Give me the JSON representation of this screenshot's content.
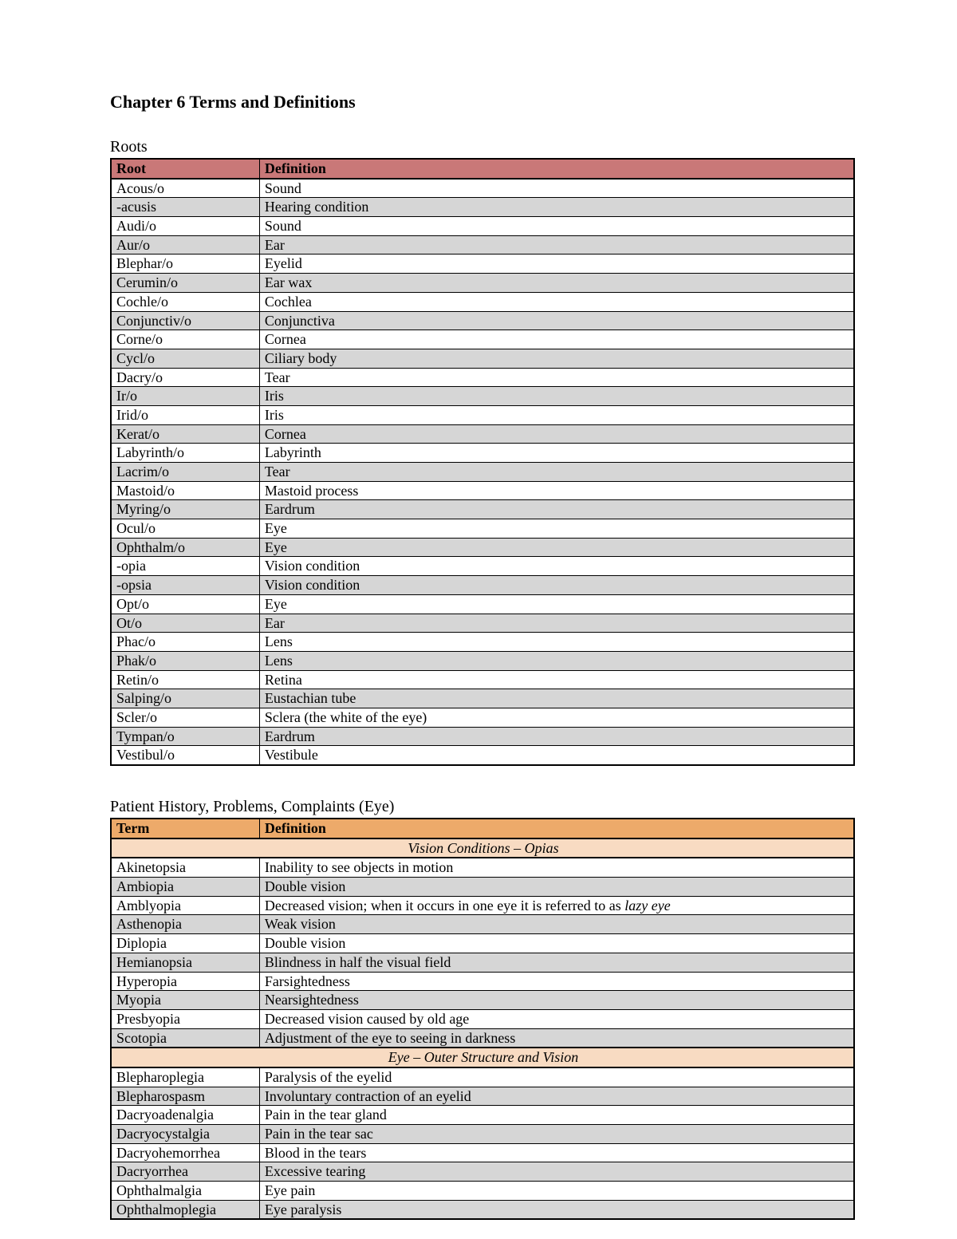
{
  "pageTitle": "Chapter 6 Terms and Definitions",
  "rootsSection": {
    "title": "Roots",
    "headers": {
      "col1": "Root",
      "col2": "Definition"
    },
    "headerBg": "#C97878",
    "rowBgAlt": "#D6D6D6",
    "rowBg": "#ffffff",
    "rows": [
      {
        "term": "Acous/o",
        "def": "Sound"
      },
      {
        "term": "-acusis",
        "def": "Hearing condition"
      },
      {
        "term": "Audi/o",
        "def": "Sound"
      },
      {
        "term": "Aur/o",
        "def": "Ear"
      },
      {
        "term": "Blephar/o",
        "def": "Eyelid"
      },
      {
        "term": "Cerumin/o",
        "def": "Ear wax"
      },
      {
        "term": "Cochle/o",
        "def": "Cochlea"
      },
      {
        "term": "Conjunctiv/o",
        "def": "Conjunctiva"
      },
      {
        "term": "Corne/o",
        "def": "Cornea"
      },
      {
        "term": "Cycl/o",
        "def": "Ciliary body"
      },
      {
        "term": "Dacry/o",
        "def": "Tear"
      },
      {
        "term": "Ir/o",
        "def": "Iris"
      },
      {
        "term": "Irid/o",
        "def": "Iris"
      },
      {
        "term": "Kerat/o",
        "def": "Cornea"
      },
      {
        "term": "Labyrinth/o",
        "def": "Labyrinth"
      },
      {
        "term": "Lacrim/o",
        "def": "Tear"
      },
      {
        "term": "Mastoid/o",
        "def": "Mastoid process"
      },
      {
        "term": "Myring/o",
        "def": "Eardrum"
      },
      {
        "term": "Ocul/o",
        "def": "Eye"
      },
      {
        "term": "Ophthalm/o",
        "def": "Eye"
      },
      {
        "term": "-opia",
        "def": "Vision condition"
      },
      {
        "term": "-opsia",
        "def": "Vision condition"
      },
      {
        "term": "Opt/o",
        "def": "Eye"
      },
      {
        "term": "Ot/o",
        "def": "Ear"
      },
      {
        "term": "Phac/o",
        "def": "Lens"
      },
      {
        "term": "Phak/o",
        "def": "Lens"
      },
      {
        "term": "Retin/o",
        "def": "Retina"
      },
      {
        "term": "Salping/o",
        "def": "Eustachian tube"
      },
      {
        "term": "Scler/o",
        "def": "Sclera (the white of the eye)"
      },
      {
        "term": "Tympan/o",
        "def": "Eardrum"
      },
      {
        "term": "Vestibul/o",
        "def": "Vestibule"
      }
    ]
  },
  "patientSection": {
    "title": "Patient History, Problems, Complaints (Eye)",
    "headers": {
      "col1": "Term",
      "col2": "Definition"
    },
    "headerBg": "#EDAA6A",
    "subHeaderBg": "#F8DBC2",
    "rowBgAlt": "#D6D6D6",
    "rowBg": "#ffffff",
    "groups": [
      {
        "subheading": "Vision Conditions – Opias",
        "rows": [
          {
            "term": "Akinetopsia",
            "def": "Inability to see objects in motion"
          },
          {
            "term": "Ambiopia",
            "def": "Double vision"
          },
          {
            "term": "Amblyopia",
            "def": "Decreased vision; when it occurs in one eye it is referred to as ",
            "ital": "lazy eye"
          },
          {
            "term": "Asthenopia",
            "def": "Weak vision"
          },
          {
            "term": "Diplopia",
            "def": "Double vision"
          },
          {
            "term": "Hemianopsia",
            "def": "Blindness in half the visual field"
          },
          {
            "term": "Hyperopia",
            "def": "Farsightedness"
          },
          {
            "term": "Myopia",
            "def": "Nearsightedness"
          },
          {
            "term": "Presbyopia",
            "def": "Decreased vision caused by old age"
          },
          {
            "term": "Scotopia",
            "def": "Adjustment of the eye to seeing in darkness"
          }
        ]
      },
      {
        "subheading": "Eye – Outer Structure and Vision",
        "rows": [
          {
            "term": "Blepharoplegia",
            "def": "Paralysis of the eyelid"
          },
          {
            "term": "Blepharospasm",
            "def": "Involuntary contraction of an eyelid"
          },
          {
            "term": "Dacryoadenalgia",
            "def": "Pain in the tear gland"
          },
          {
            "term": "Dacryocystalgia",
            "def": "Pain in the tear sac"
          },
          {
            "term": "Dacryohemorrhea",
            "def": "Blood in the tears"
          },
          {
            "term": "Dacryorrhea",
            "def": "Excessive tearing"
          },
          {
            "term": "Ophthalmalgia",
            "def": "Eye pain"
          },
          {
            "term": "Ophthalmoplegia",
            "def": "Eye paralysis"
          }
        ]
      }
    ]
  }
}
